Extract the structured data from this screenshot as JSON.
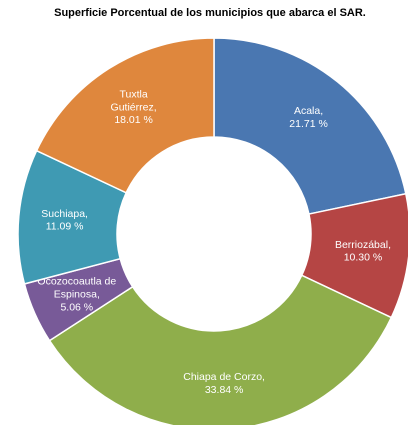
{
  "chart_data": {
    "type": "donut",
    "title": "Superficie Porcentual de los municipios que abarca el SAR.",
    "categories": [
      "Acala,",
      "Berriozábal,",
      "Chiapa de Corzo,",
      "Ocozocoautla de Espinosa,",
      "Suchiapa,",
      "Tuxtla Gutiérrez,"
    ],
    "values": [
      21.71,
      10.3,
      33.84,
      5.06,
      11.09,
      18.01
    ],
    "value_labels": [
      "21.71 %",
      "10.30 %",
      "33.84 %",
      "5.06 %",
      "11.09 %",
      "18.01 %"
    ],
    "colors": [
      "#4a77b1",
      "#b54544",
      "#8fae4b",
      "#785a98",
      "#3f9ab3",
      "#df873d"
    ]
  }
}
